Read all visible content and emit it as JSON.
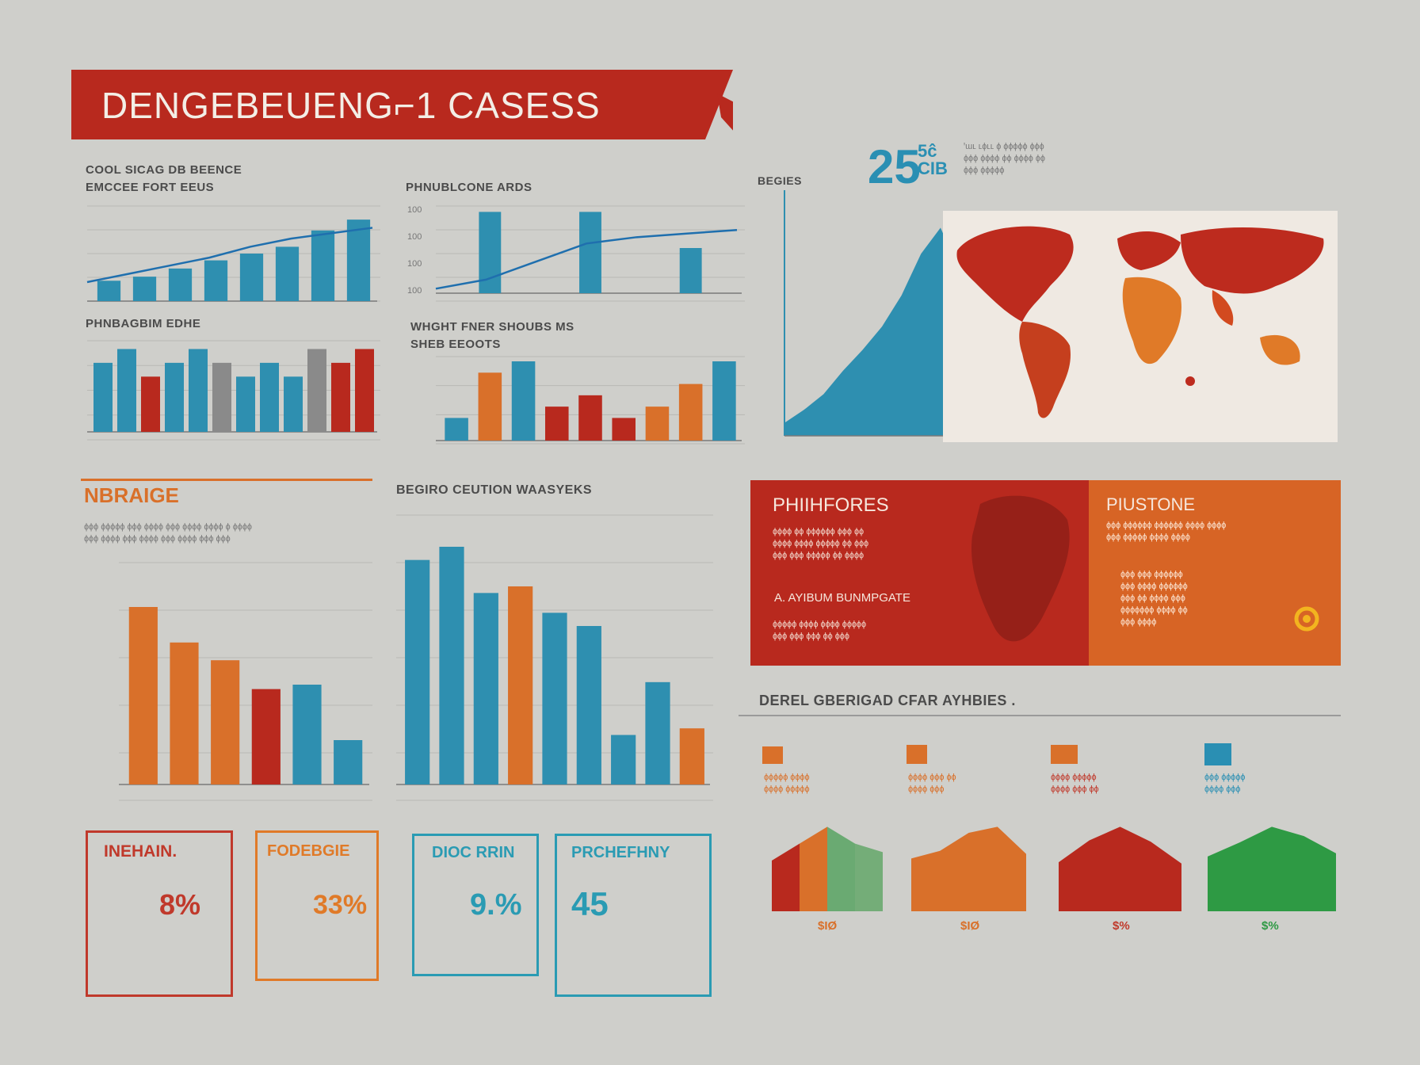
{
  "title": "DENGEBEUENG⌐1 CASESS",
  "stat_big": "25",
  "stat_small": "5ĉ CIB",
  "header_notes": [
    "ꞌ⁠ɯ⁠ʟ ʟɸʟʟ ɸ ɸɸɸɸɸ ɸɸɸ",
    "ɸɸɸ ɸɸɸɸ ɸɸ ɸɸɸɸ ɸɸ",
    "ɸɸɸ ɸɸɸɸɸ"
  ],
  "sections": {
    "tl_title_1": "COOL SICAG DB BEENCE",
    "tl_title_2": "EMCCEE FORT EEUS",
    "tc_title": "PHNUBLCONE ARDS",
    "ml_title": "PHNBAGBIM EDHE",
    "mc_title_1": "WHGHT FNER SHOUBS MS",
    "mc_title_2": "SHEB EEOOTS",
    "map_label": "BEGIES",
    "nbraige": "NBRAIGE",
    "bc_title": "BEGIRO CEUTION WAASYEKS",
    "br_title": "DEREL GBERIGAD CFAR AYHBIES ."
  },
  "panel_red": {
    "title": "PHIIHFORES",
    "subtitle": "A. AYIBUM BUNMPGATE"
  },
  "panel_orange": {
    "title": "PIUSTONE"
  },
  "cards": [
    {
      "title": "INEHAIN.",
      "value": "8%"
    },
    {
      "title": "FODEBGIE",
      "value": "33%"
    },
    {
      "title": "DIOC RRIN",
      "value": "9.%"
    },
    {
      "title": "PRCHEFHNY",
      "value": "45"
    }
  ],
  "mini_labels": [
    "$IØ",
    "$IØ",
    "$%",
    "$%"
  ],
  "colors": {
    "red": "#b8291e",
    "orange": "#d9702a",
    "teal": "#2e8fb0",
    "blue": "#1f6fae",
    "green": "#2e9a44",
    "grey": "#8a8a8a",
    "background": "#cfcfcb"
  },
  "chart_data": [
    {
      "type": "bar",
      "name": "top-left",
      "values": [
        1.5,
        1.8,
        2.4,
        3,
        3.5,
        4,
        5.2,
        6.0
      ],
      "line": [
        1.4,
        2.0,
        2.6,
        3.2,
        4.0,
        4.6,
        5.0,
        5.4
      ],
      "ylim": [
        0,
        7
      ]
    },
    {
      "type": "bar",
      "name": "top-center",
      "values": [
        9,
        9,
        5
      ],
      "line": [
        0.5,
        1.5,
        3.5,
        5.5,
        6.2,
        6.6,
        7.0
      ],
      "ylim": [
        0,
        10
      ],
      "ytick_labels": [
        "100",
        "100",
        "100",
        "100"
      ]
    },
    {
      "type": "bar",
      "name": "mid-left",
      "values": [
        5,
        6,
        4,
        5,
        6,
        5,
        4,
        5,
        4,
        6,
        5,
        6
      ]
    },
    {
      "type": "bar",
      "name": "mid-center",
      "values": [
        2,
        6,
        7,
        3,
        4,
        2,
        3,
        5,
        7
      ]
    },
    {
      "type": "area",
      "name": "spike",
      "values": [
        0.5,
        1,
        1.6,
        2.5,
        3.3,
        4.2,
        5.4,
        7,
        8,
        6.3,
        4.6,
        2.4,
        1.2,
        0.4
      ]
    },
    {
      "type": "bar",
      "name": "bottom-left",
      "values": [
        800,
        640,
        560,
        430,
        450,
        200
      ],
      "ylim": [
        0,
        1000
      ]
    },
    {
      "type": "bar",
      "name": "bottom-center",
      "values": [
        680,
        720,
        580,
        600,
        520,
        480,
        150,
        310,
        170
      ]
    },
    {
      "type": "area",
      "name": "mini-1",
      "values": [
        3,
        4,
        5,
        4,
        3.5
      ]
    },
    {
      "type": "area",
      "name": "mini-2",
      "values": [
        3.5,
        4,
        5.2,
        5.6,
        3.8
      ]
    },
    {
      "type": "area",
      "name": "mini-3",
      "values": [
        3.6,
        5.2,
        6.2,
        5.1,
        3.5
      ]
    },
    {
      "type": "area",
      "name": "mini-4",
      "values": [
        3.5,
        4.4,
        5.4,
        4.8,
        3.7
      ]
    }
  ]
}
